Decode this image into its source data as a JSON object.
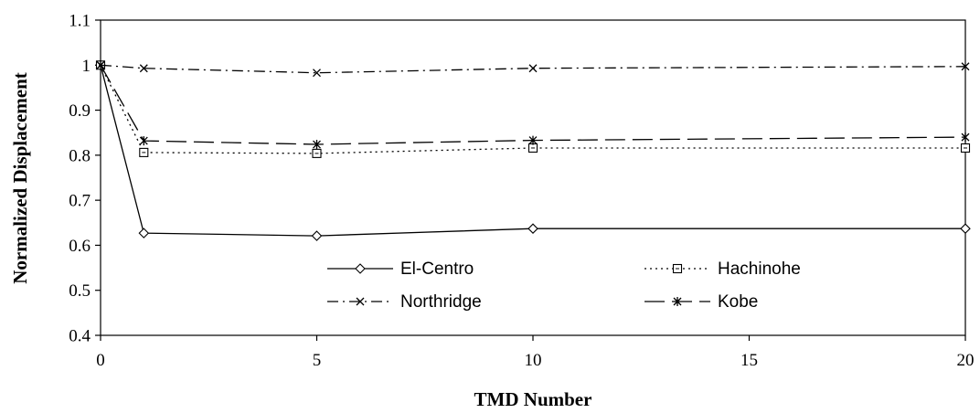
{
  "chart_data": {
    "type": "line",
    "title": "",
    "xlabel": "TMD Number",
    "ylabel": "Normalized Displacement",
    "xlim": [
      0,
      20
    ],
    "ylim": [
      0.4,
      1.1
    ],
    "xticks": [
      0,
      5,
      10,
      15,
      20
    ],
    "yticks": [
      0.4,
      0.5,
      0.6,
      0.7,
      0.8,
      0.9,
      1,
      1.1
    ],
    "x": [
      0,
      1,
      5,
      10,
      20
    ],
    "series": [
      {
        "name": "El-Centro",
        "values": [
          1.0,
          0.627,
          0.621,
          0.637,
          0.637
        ],
        "marker": "diamond",
        "dash": "solid"
      },
      {
        "name": "Hachinohe",
        "values": [
          1.0,
          0.806,
          0.804,
          0.816,
          0.816
        ],
        "marker": "square",
        "dash": "dotted"
      },
      {
        "name": "Northridge",
        "values": [
          1.0,
          0.993,
          0.983,
          0.993,
          0.997
        ],
        "marker": "x",
        "dash": "dashdot"
      },
      {
        "name": "Kobe",
        "values": [
          1.0,
          0.832,
          0.824,
          0.833,
          0.84
        ],
        "marker": "star",
        "dash": "longdash"
      }
    ],
    "grid": false,
    "legend_position": "bottom-inside"
  }
}
